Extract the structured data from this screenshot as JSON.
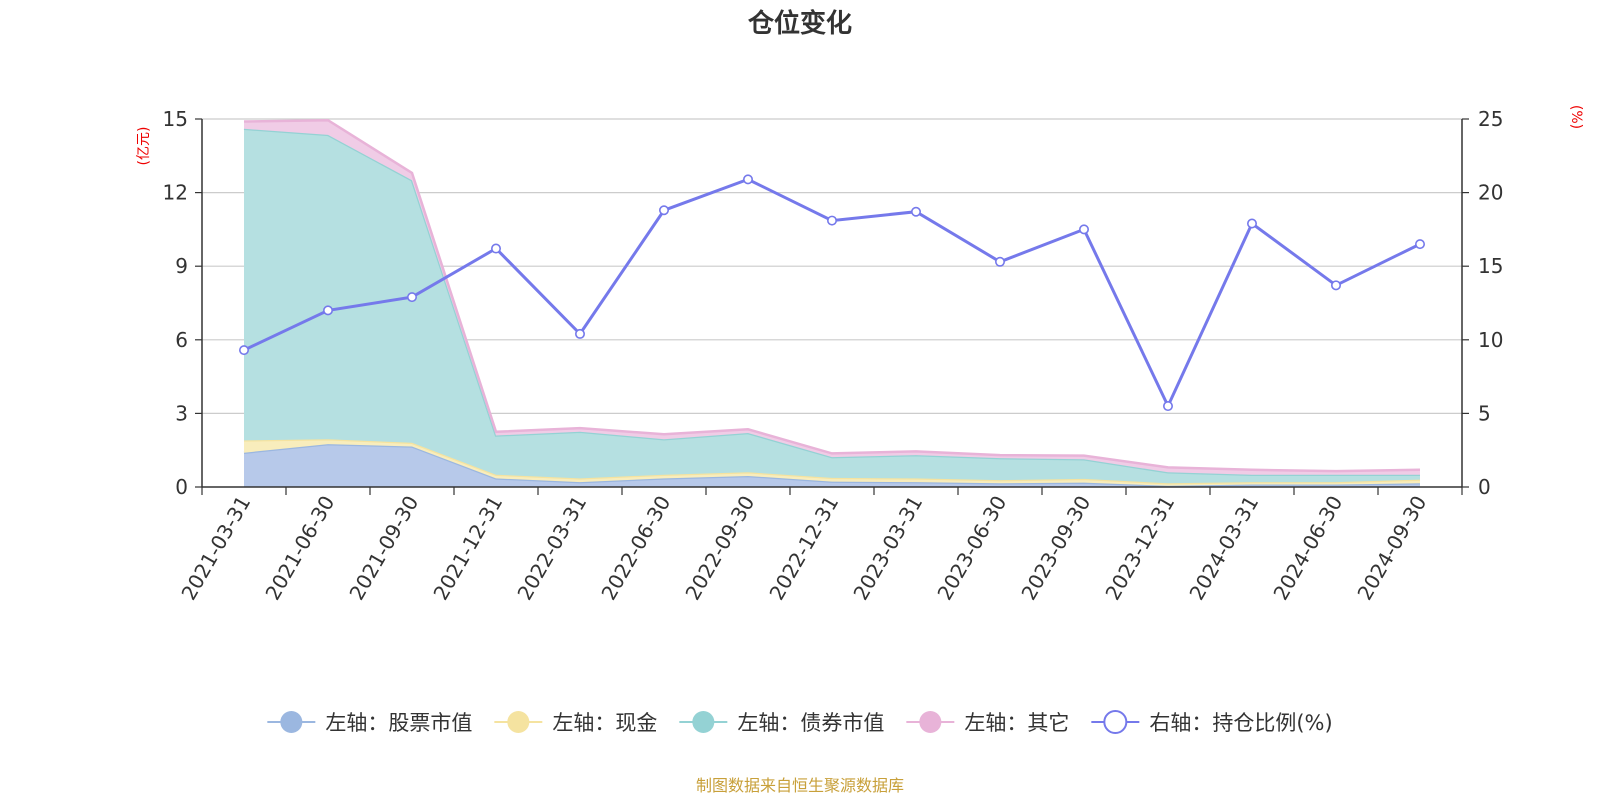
{
  "chart_data": {
    "type": "area",
    "title": "仓位变化",
    "categories": [
      "2021-03-31",
      "2021-06-30",
      "2021-09-30",
      "2021-12-31",
      "2022-03-31",
      "2022-06-30",
      "2022-09-30",
      "2022-12-31",
      "2023-03-31",
      "2023-06-30",
      "2023-09-30",
      "2023-12-31",
      "2024-03-31",
      "2024-06-30",
      "2024-09-30"
    ],
    "left_axis": {
      "unit": "(亿元)",
      "ylim": [
        0,
        15
      ],
      "ticks": [
        0,
        3,
        6,
        9,
        12,
        15
      ]
    },
    "right_axis": {
      "unit": "(%)",
      "ylim": [
        0,
        25
      ],
      "ticks": [
        0,
        5,
        10,
        15,
        20,
        25
      ]
    },
    "series": [
      {
        "name": "左轴：股票市值",
        "axis": "left",
        "kind": "stacked-area",
        "color": "#9bb7e0",
        "fill": "#b7c9ea",
        "values": [
          1.4,
          1.75,
          1.65,
          0.35,
          0.2,
          0.35,
          0.45,
          0.22,
          0.2,
          0.15,
          0.18,
          0.05,
          0.1,
          0.1,
          0.15
        ]
      },
      {
        "name": "左轴：现金",
        "axis": "left",
        "kind": "stacked-area",
        "color": "#f5e3a0",
        "fill": "#f8edbc",
        "values": [
          0.5,
          0.2,
          0.15,
          0.15,
          0.15,
          0.15,
          0.15,
          0.15,
          0.15,
          0.13,
          0.15,
          0.1,
          0.1,
          0.1,
          0.15
        ]
      },
      {
        "name": "左轴：债券市值",
        "axis": "left",
        "kind": "stacked-area",
        "color": "#94d2d4",
        "fill": "#b5e0e1",
        "values": [
          12.7,
          12.4,
          10.7,
          1.6,
          1.9,
          1.45,
          1.6,
          0.85,
          0.95,
          0.9,
          0.8,
          0.45,
          0.3,
          0.3,
          0.2
        ]
      },
      {
        "name": "左轴：其它",
        "axis": "left",
        "kind": "stacked-area",
        "color": "#e8b3d8",
        "fill": "#f0cce6",
        "values": [
          0.3,
          0.6,
          0.3,
          0.15,
          0.15,
          0.2,
          0.15,
          0.15,
          0.15,
          0.12,
          0.15,
          0.2,
          0.2,
          0.15,
          0.2
        ]
      },
      {
        "name": "右轴：持仓比例(%)",
        "axis": "right",
        "kind": "line",
        "color": "#7579eb",
        "values": [
          9.3,
          12.0,
          12.9,
          16.2,
          10.4,
          18.8,
          20.9,
          18.1,
          18.7,
          15.3,
          17.5,
          5.5,
          17.9,
          13.7,
          16.5
        ]
      }
    ],
    "legend_position": "bottom",
    "grid": true
  },
  "source_note": "制图数据来自恒生聚源数据库"
}
